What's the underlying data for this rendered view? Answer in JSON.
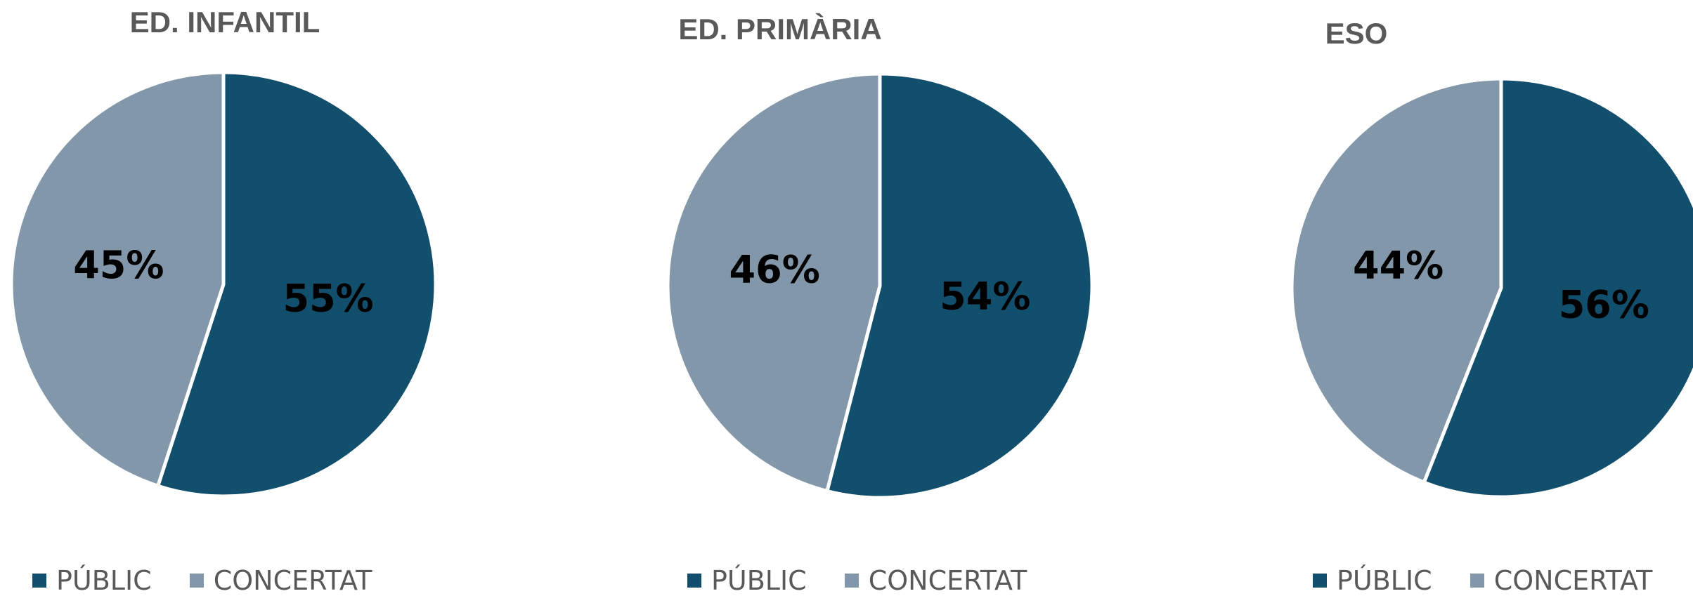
{
  "colors": {
    "public": "#124f6d",
    "concertat": "#8397aa"
  },
  "chart_data": [
    {
      "type": "pie",
      "title": "ED. INFANTIL",
      "categories": [
        "PÚBLIC",
        "CONCERTAT"
      ],
      "values": [
        55,
        45
      ],
      "labels": [
        "55%",
        "45%"
      ],
      "legend": "bottom"
    },
    {
      "type": "pie",
      "title": "ED. PRIMÀRIA",
      "categories": [
        "PÚBLIC",
        "CONCERTAT"
      ],
      "values": [
        54,
        46
      ],
      "labels": [
        "54%",
        "46%"
      ],
      "legend": "bottom"
    },
    {
      "type": "pie",
      "title": "ESO",
      "categories": [
        "PÚBLIC",
        "CONCERTAT"
      ],
      "values": [
        56,
        44
      ],
      "labels": [
        "56%",
        "44%"
      ],
      "legend": "bottom"
    }
  ]
}
